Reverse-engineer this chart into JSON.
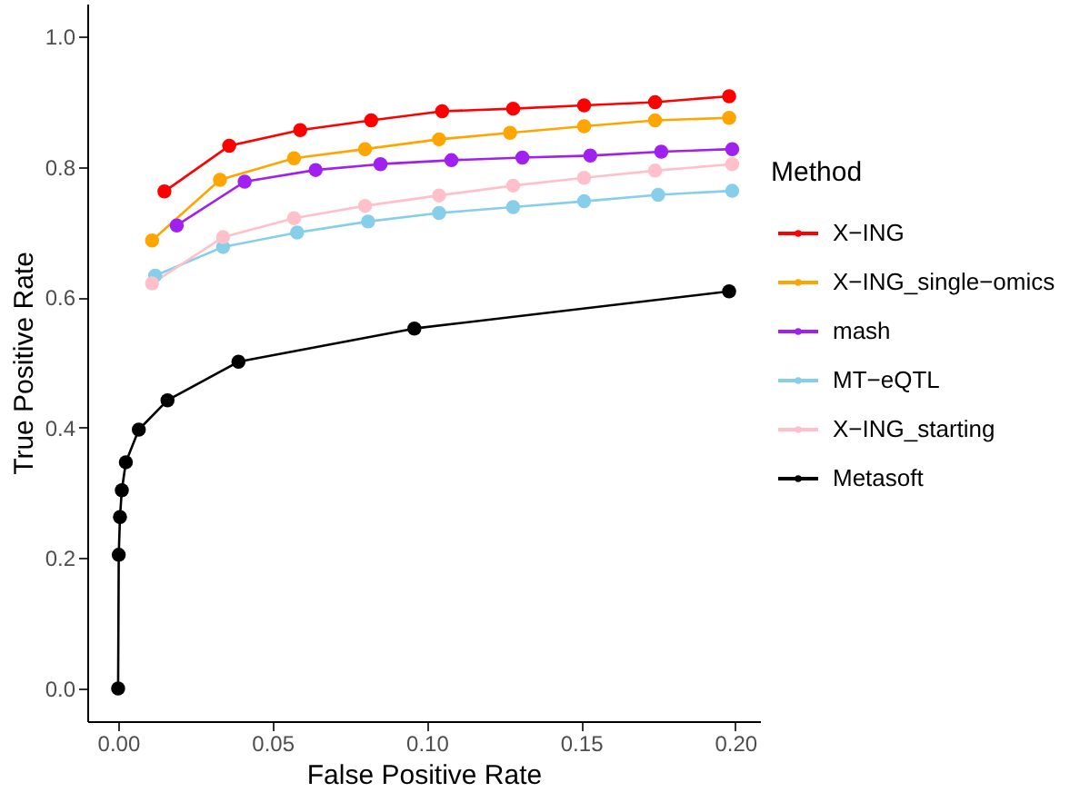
{
  "chart_data": {
    "type": "line",
    "xlabel": "False Positive Rate",
    "ylabel": "True Positive Rate",
    "legend_title": "Method",
    "legend": "right",
    "grid": false,
    "marker": "circle",
    "line_style": "solid",
    "xlim": [
      -0.01,
      0.208
    ],
    "ylim": [
      -0.05,
      1.05
    ],
    "xticks": [
      {
        "value": 0,
        "label": "0.00"
      },
      {
        "value": 0.05,
        "label": "0.05"
      },
      {
        "value": 0.1,
        "label": "0.10"
      },
      {
        "value": 0.15,
        "label": "0.15"
      },
      {
        "value": 0.2,
        "label": "0.20"
      }
    ],
    "yticks": [
      {
        "value": 0,
        "label": "0.0"
      },
      {
        "value": 0.2,
        "label": "0.2"
      },
      {
        "value": 0.4,
        "label": "0.4"
      },
      {
        "value": 0.6,
        "label": "0.6"
      },
      {
        "value": 0.8,
        "label": "0.8"
      },
      {
        "value": 1,
        "label": "1.0"
      }
    ],
    "series": [
      {
        "name": "X−ING",
        "color": "#ff0000",
        "x": [
          0.015,
          0.036,
          0.059,
          0.082,
          0.105,
          0.128,
          0.151,
          0.174,
          0.198
        ],
        "values": [
          0.762,
          0.832,
          0.856,
          0.871,
          0.885,
          0.889,
          0.894,
          0.899,
          0.908
        ]
      },
      {
        "name": "X−ING_single−omics",
        "color": "#ffa500",
        "x": [
          0.011,
          0.033,
          0.057,
          0.08,
          0.104,
          0.127,
          0.151,
          0.174,
          0.198
        ],
        "values": [
          0.687,
          0.78,
          0.813,
          0.827,
          0.842,
          0.852,
          0.862,
          0.871,
          0.875
        ]
      },
      {
        "name": "mash",
        "color": "#a020f0",
        "x": [
          0.019,
          0.041,
          0.064,
          0.085,
          0.108,
          0.131,
          0.153,
          0.176,
          0.199
        ],
        "values": [
          0.71,
          0.777,
          0.795,
          0.804,
          0.81,
          0.814,
          0.817,
          0.823,
          0.827
        ]
      },
      {
        "name": "MT−eQTL",
        "color": "#87ceeb",
        "x": [
          0.012,
          0.034,
          0.058,
          0.081,
          0.104,
          0.128,
          0.151,
          0.175,
          0.199
        ],
        "values": [
          0.633,
          0.677,
          0.699,
          0.716,
          0.729,
          0.738,
          0.747,
          0.757,
          0.763
        ]
      },
      {
        "name": "X−ING_starting",
        "color": "#ffc0cb",
        "x": [
          0.011,
          0.034,
          0.057,
          0.08,
          0.104,
          0.128,
          0.151,
          0.174,
          0.199
        ],
        "values": [
          0.621,
          0.692,
          0.721,
          0.74,
          0.756,
          0.771,
          0.783,
          0.794,
          0.804
        ]
      },
      {
        "name": "Metasoft",
        "color": "#000000",
        "x": [
          0,
          0.0002,
          0.0006,
          0.0012,
          0.0025,
          0.0067,
          0.016,
          0.039,
          0.096,
          0.198
        ],
        "values": [
          0,
          0.205,
          0.263,
          0.304,
          0.347,
          0.397,
          0.442,
          0.501,
          0.552,
          0.609
        ]
      }
    ]
  }
}
